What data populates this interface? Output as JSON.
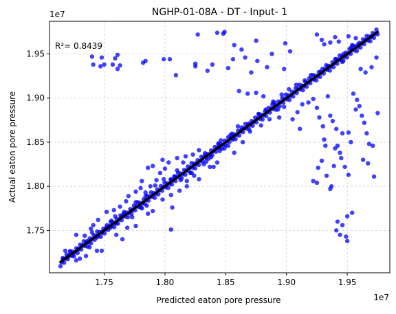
{
  "chart_data": {
    "type": "scatter",
    "title": "NGHP-01-08A - DT - Input- 1",
    "xlabel": "Predicted eaton pore pressure",
    "ylabel": "Actual eaton pore pressure",
    "x_offset_label": "1e7",
    "y_offset_label": "1e7",
    "xlim": [
      1.705,
      1.985
    ],
    "ylim": [
      1.702,
      1.987
    ],
    "x_ticks": [
      1.75,
      1.8,
      1.85,
      1.9,
      1.95
    ],
    "x_tick_labels": [
      "1.75",
      "1.80",
      "1.85",
      "1.90",
      "1.95"
    ],
    "y_ticks": [
      1.75,
      1.8,
      1.85,
      1.9,
      1.95
    ],
    "y_tick_labels": [
      "1.75",
      "1.80",
      "1.85",
      "1.90",
      "1.95"
    ],
    "grid": true,
    "annotation": "R²= 0.8439",
    "marker_color": "#0000ff",
    "fit_line_color": "#000000",
    "fit_line": [
      [
        1.714,
        1.714
      ],
      [
        1.975,
        1.975
      ]
    ],
    "points": [
      [
        1.74,
        1.947
      ],
      [
        1.748,
        1.946
      ],
      [
        1.741,
        1.938
      ],
      [
        1.747,
        1.936
      ],
      [
        1.75,
        1.938
      ],
      [
        1.759,
        1.945
      ],
      [
        1.761,
        1.949
      ],
      [
        1.757,
        1.938
      ],
      [
        1.763,
        1.937
      ],
      [
        1.761,
        1.933
      ],
      [
        1.784,
        1.942
      ],
      [
        1.782,
        1.94
      ],
      [
        1.799,
        1.944
      ],
      [
        1.804,
        1.944
      ],
      [
        1.809,
        1.926
      ],
      [
        1.825,
        1.939
      ],
      [
        1.825,
        1.936
      ],
      [
        1.839,
        1.938
      ],
      [
        1.835,
        1.931
      ],
      [
        1.843,
        1.974
      ],
      [
        1.827,
        1.972
      ],
      [
        1.848,
        1.973
      ],
      [
        1.849,
        1.975
      ],
      [
        1.857,
        1.96
      ],
      [
        1.856,
        1.944
      ],
      [
        1.866,
        1.946
      ],
      [
        1.863,
        1.955
      ],
      [
        1.875,
        1.965
      ],
      [
        1.876,
        1.942
      ],
      [
        1.884,
        1.935
      ],
      [
        1.888,
        1.95
      ],
      [
        1.899,
        1.962
      ],
      [
        1.903,
        1.953
      ],
      [
        1.925,
        1.972
      ],
      [
        1.929,
        1.966
      ],
      [
        1.931,
        1.961
      ],
      [
        1.936,
        1.963
      ],
      [
        1.94,
        1.969
      ],
      [
        1.943,
        1.964
      ],
      [
        1.946,
        1.941
      ],
      [
        1.951,
        1.97
      ],
      [
        1.957,
        1.968
      ],
      [
        1.954,
        1.96
      ],
      [
        1.961,
        1.933
      ],
      [
        1.965,
        1.929
      ],
      [
        1.97,
        1.935
      ],
      [
        1.974,
        1.946
      ],
      [
        1.852,
        1.934
      ],
      [
        1.871,
        1.929
      ],
      [
        1.898,
        1.933
      ],
      [
        1.861,
        1.908
      ],
      [
        1.868,
        1.905
      ],
      [
        1.875,
        1.906
      ],
      [
        1.881,
        1.902
      ],
      [
        1.889,
        1.896
      ],
      [
        1.893,
        1.887
      ],
      [
        1.898,
        1.89
      ],
      [
        1.905,
        1.876
      ],
      [
        1.909,
        1.884
      ],
      [
        1.913,
        1.893
      ],
      [
        1.918,
        1.895
      ],
      [
        1.922,
        1.899
      ],
      [
        1.925,
        1.889
      ],
      [
        1.927,
        1.878
      ],
      [
        1.93,
        1.868
      ],
      [
        1.931,
        1.853
      ],
      [
        1.934,
        1.902
      ],
      [
        1.936,
        1.88
      ],
      [
        1.938,
        1.874
      ],
      [
        1.941,
        1.865
      ],
      [
        1.942,
        1.846
      ],
      [
        1.944,
        1.838
      ],
      [
        1.946,
        1.86
      ],
      [
        1.948,
        1.822
      ],
      [
        1.951,
        1.813
      ],
      [
        1.953,
        1.85
      ],
      [
        1.955,
        1.905
      ],
      [
        1.958,
        1.898
      ],
      [
        1.96,
        1.891
      ],
      [
        1.962,
        1.88
      ],
      [
        1.964,
        1.872
      ],
      [
        1.966,
        1.86
      ],
      [
        1.968,
        1.848
      ],
      [
        1.971,
        1.846
      ],
      [
        1.963,
        1.83
      ],
      [
        1.967,
        1.826
      ],
      [
        1.972,
        1.811
      ],
      [
        1.975,
        1.883
      ],
      [
        1.945,
        1.832
      ],
      [
        1.939,
        1.823
      ],
      [
        1.937,
        1.8
      ],
      [
        1.942,
        1.76
      ],
      [
        1.946,
        1.756
      ],
      [
        1.944,
        1.745
      ],
      [
        1.95,
        1.738
      ],
      [
        1.949,
        1.743
      ],
      [
        1.954,
        1.77
      ],
      [
        1.95,
        1.766
      ],
      [
        1.922,
        1.806
      ],
      [
        1.925,
        1.804
      ],
      [
        1.926,
        1.821
      ],
      [
        1.929,
        1.829
      ],
      [
        1.933,
        1.812
      ],
      [
        1.936,
        1.797
      ],
      [
        1.94,
        1.843
      ],
      [
        1.941,
        1.75
      ],
      [
        1.951,
        1.861
      ],
      [
        1.957,
        1.887
      ],
      [
        1.932,
        1.846
      ],
      [
        1.911,
        1.865
      ],
      [
        1.879,
        1.869
      ],
      [
        1.886,
        1.876
      ],
      [
        1.894,
        1.878
      ],
      [
        1.87,
        1.862
      ],
      [
        1.864,
        1.85
      ],
      [
        1.857,
        1.838
      ],
      [
        1.852,
        1.846
      ],
      [
        1.845,
        1.84
      ],
      [
        1.843,
        1.827
      ],
      [
        1.837,
        1.822
      ],
      [
        1.833,
        1.835
      ],
      [
        1.826,
        1.826
      ],
      [
        1.822,
        1.815
      ],
      [
        1.815,
        1.827
      ],
      [
        1.81,
        1.818
      ],
      [
        1.805,
        1.808
      ],
      [
        1.8,
        1.82
      ],
      [
        1.796,
        1.815
      ],
      [
        1.792,
        1.801
      ],
      [
        1.788,
        1.8
      ],
      [
        1.784,
        1.789
      ],
      [
        1.78,
        1.798
      ],
      [
        1.776,
        1.782
      ],
      [
        1.772,
        1.772
      ],
      [
        1.768,
        1.783
      ],
      [
        1.764,
        1.765
      ],
      [
        1.76,
        1.758
      ],
      [
        1.756,
        1.761
      ],
      [
        1.752,
        1.754
      ],
      [
        1.748,
        1.748
      ],
      [
        1.744,
        1.742
      ],
      [
        1.74,
        1.748
      ],
      [
        1.736,
        1.738
      ],
      [
        1.732,
        1.733
      ],
      [
        1.728,
        1.728
      ],
      [
        1.724,
        1.722
      ],
      [
        1.72,
        1.72
      ],
      [
        1.716,
        1.718
      ],
      [
        1.741,
        1.756
      ],
      [
        1.745,
        1.762
      ],
      [
        1.752,
        1.771
      ],
      [
        1.758,
        1.773
      ],
      [
        1.763,
        1.777
      ],
      [
        1.77,
        1.789
      ],
      [
        1.776,
        1.794
      ],
      [
        1.781,
        1.806
      ],
      [
        1.786,
        1.821
      ],
      [
        1.79,
        1.823
      ],
      [
        1.798,
        1.83
      ],
      [
        1.803,
        1.827
      ],
      [
        1.81,
        1.832
      ],
      [
        1.817,
        1.834
      ],
      [
        1.823,
        1.836
      ],
      [
        1.828,
        1.841
      ],
      [
        1.834,
        1.828
      ],
      [
        1.84,
        1.822
      ],
      [
        1.846,
        1.852
      ],
      [
        1.854,
        1.858
      ],
      [
        1.86,
        1.868
      ],
      [
        1.798,
        1.785
      ],
      [
        1.805,
        1.79
      ],
      [
        1.812,
        1.795
      ],
      [
        1.79,
        1.772
      ],
      [
        1.785,
        1.778
      ],
      [
        1.781,
        1.775
      ],
      [
        1.806,
        1.776
      ],
      [
        1.818,
        1.806
      ],
      [
        1.824,
        1.812
      ],
      [
        1.828,
        1.808
      ],
      [
        1.818,
        1.8
      ],
      [
        1.805,
        1.751
      ],
      [
        1.786,
        1.769
      ],
      [
        1.776,
        1.755
      ],
      [
        1.769,
        1.753
      ],
      [
        1.765,
        1.74
      ],
      [
        1.76,
        1.745
      ],
      [
        1.755,
        1.753
      ],
      [
        1.748,
        1.727
      ],
      [
        1.744,
        1.727
      ],
      [
        1.738,
        1.731
      ],
      [
        1.735,
        1.721
      ],
      [
        1.73,
        1.718
      ],
      [
        1.727,
        1.716
      ],
      [
        1.722,
        1.726
      ],
      [
        1.718,
        1.727
      ],
      [
        1.727,
        1.745
      ],
      [
        1.734,
        1.744
      ],
      [
        1.739,
        1.752
      ],
      [
        1.759,
        1.766
      ],
      [
        1.766,
        1.769
      ],
      [
        1.773,
        1.765
      ],
      [
        1.779,
        1.777
      ],
      [
        1.784,
        1.793
      ],
      [
        1.793,
        1.807
      ],
      [
        1.799,
        1.808
      ],
      [
        1.808,
        1.811
      ],
      [
        1.813,
        1.807
      ],
      [
        1.821,
        1.815
      ],
      [
        1.832,
        1.825
      ],
      [
        1.838,
        1.833
      ],
      [
        1.844,
        1.848
      ],
      [
        1.849,
        1.843
      ],
      [
        1.856,
        1.853
      ],
      [
        1.863,
        1.864
      ],
      [
        1.869,
        1.871
      ],
      [
        1.877,
        1.882
      ],
      [
        1.883,
        1.887
      ],
      [
        1.89,
        1.895
      ],
      [
        1.896,
        1.904
      ],
      [
        1.902,
        1.91
      ],
      [
        1.908,
        1.915
      ],
      [
        1.915,
        1.92
      ],
      [
        1.92,
        1.926
      ],
      [
        1.928,
        1.93
      ],
      [
        1.934,
        1.936
      ],
      [
        1.94,
        1.944
      ],
      [
        1.947,
        1.95
      ],
      [
        1.953,
        1.957
      ],
      [
        1.959,
        1.961
      ],
      [
        1.965,
        1.966
      ],
      [
        1.97,
        1.97
      ]
    ]
  }
}
